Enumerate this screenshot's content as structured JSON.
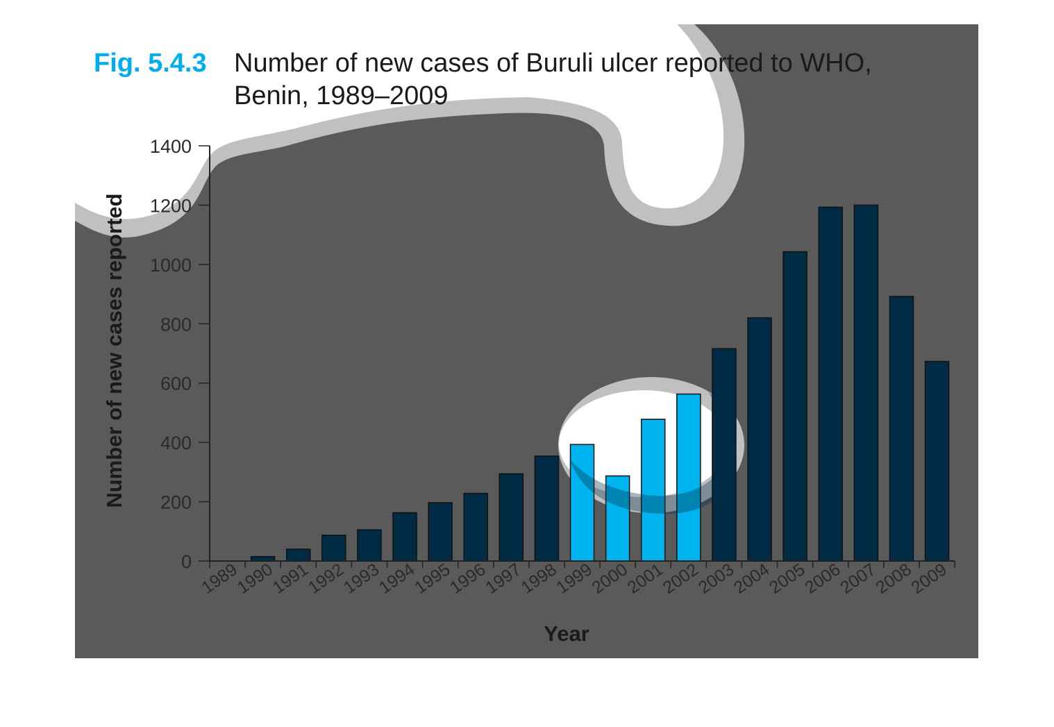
{
  "figure": {
    "label": "Fig. 5.4.3",
    "title_line1": "Number of new cases of Buruli ulcer reported to WHO,",
    "title_line2": "Benin, 1989–2009"
  },
  "colors": {
    "background": "#5a5a5a",
    "bar": "#002b45",
    "bar_highlight": "#00b5ef",
    "bar_stroke": "#111111",
    "accent": "#00aeef",
    "spotlight": "#ffffff",
    "spotlight_ring": "#c0c0c0"
  },
  "chart_data": {
    "type": "bar",
    "title": "Number of new cases of Buruli ulcer reported to WHO, Benin, 1989–2009",
    "xlabel": "Year",
    "ylabel": "Number of new cases reported",
    "categories": [
      "1989",
      "1990",
      "1991",
      "1992",
      "1993",
      "1994",
      "1995",
      "1996",
      "1997",
      "1998",
      "1999",
      "2000",
      "2001",
      "2002",
      "2003",
      "2004",
      "2005",
      "2006",
      "2007",
      "2008",
      "2009"
    ],
    "values": [
      0,
      15,
      40,
      87,
      105,
      163,
      197,
      228,
      294,
      354,
      393,
      287,
      478,
      563,
      716,
      820,
      1043,
      1193,
      1200,
      892,
      673
    ],
    "highlighted_categories": [
      "1999",
      "2000",
      "2001",
      "2002"
    ],
    "ylim": [
      0,
      1400
    ],
    "yticks": [
      0,
      200,
      400,
      600,
      800,
      1000,
      1200,
      1400
    ],
    "grid": false,
    "legend": "none"
  }
}
